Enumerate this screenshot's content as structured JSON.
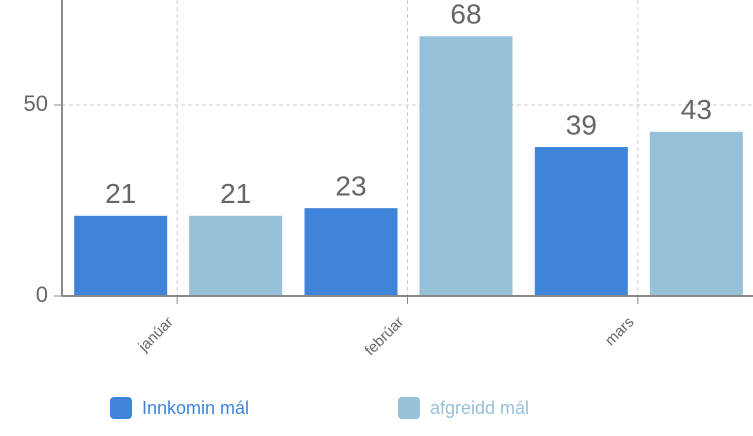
{
  "chart_data": {
    "type": "bar",
    "categories": [
      "janúar",
      "febrúar",
      "mars"
    ],
    "series": [
      {
        "name": "Innkomin mál",
        "color": "#3f84d8",
        "values": [
          21,
          23,
          39
        ]
      },
      {
        "name": "afgreidd mál",
        "color": "#97c1d8",
        "values": [
          21,
          68,
          43
        ]
      }
    ],
    "ylim": [
      0,
      77.5
    ],
    "yticks": [
      0,
      50
    ],
    "grid": true
  }
}
